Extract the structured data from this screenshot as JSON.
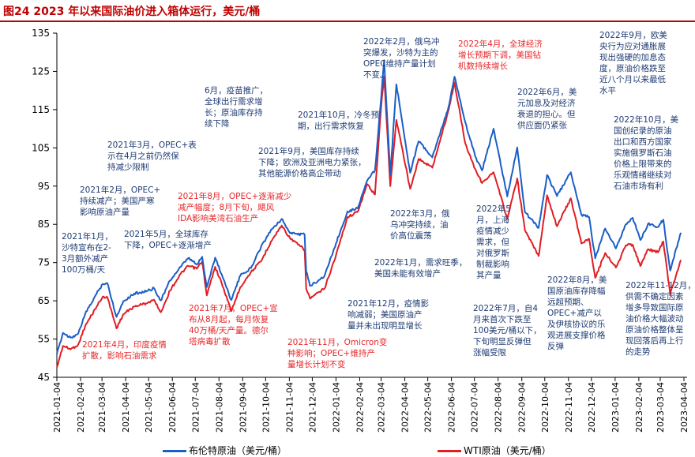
{
  "title": "图24  2023 年以来国际油价进入箱体运行，美元/桶",
  "colors": {
    "brent": "#1a5ec8",
    "wti": "#e01e24",
    "title": "#c00000",
    "blue_text": "#1f3b73",
    "red_text": "#e8272a"
  },
  "chart_data": {
    "type": "line",
    "title": "2023 年以来国际油价进入箱体运行，美元/桶",
    "ylim": [
      45,
      135
    ],
    "yticks": [
      45,
      55,
      65,
      75,
      85,
      95,
      105,
      115,
      125,
      135
    ],
    "xticks": [
      "2021-01-04",
      "2021-02-04",
      "2021-03-04",
      "2021-04-04",
      "2021-05-04",
      "2021-06-04",
      "2021-07-04",
      "2021-08-04",
      "2021-09-04",
      "2021-10-04",
      "2021-11-04",
      "2021-12-04",
      "2022-01-04",
      "2022-02-04",
      "2022-03-04",
      "2022-04-04",
      "2022-05-04",
      "2022-06-04",
      "2022-07-04",
      "2022-08-04",
      "2022-09-04",
      "2022-10-04",
      "2022-11-04",
      "2022-12-04",
      "2023-01-04",
      "2023-02-04",
      "2023-03-04",
      "2023-04-04"
    ],
    "x_end": "2023-03-31",
    "legend_position": "bottom",
    "series": [
      {
        "name": "布伦特原油（美元/桶）",
        "color": "#1a5ec8",
        "points": [
          [
            "2021-01-04",
            51.1
          ],
          [
            "2021-01-12",
            56.6
          ],
          [
            "2021-01-22",
            55.4
          ],
          [
            "2021-02-01",
            56.4
          ],
          [
            "2021-02-10",
            61.5
          ],
          [
            "2021-02-25",
            66.9
          ],
          [
            "2021-03-05",
            69.4
          ],
          [
            "2021-03-11",
            69.6
          ],
          [
            "2021-03-23",
            60.8
          ],
          [
            "2021-04-01",
            64.9
          ],
          [
            "2021-04-15",
            66.9
          ],
          [
            "2021-05-03",
            67.6
          ],
          [
            "2021-05-11",
            68.3
          ],
          [
            "2021-05-20",
            65.1
          ],
          [
            "2021-06-01",
            70.3
          ],
          [
            "2021-06-15",
            73.9
          ],
          [
            "2021-06-25",
            76.2
          ],
          [
            "2021-07-06",
            74.5
          ],
          [
            "2021-07-13",
            76.5
          ],
          [
            "2021-07-19",
            68.6
          ],
          [
            "2021-07-30",
            76.3
          ],
          [
            "2021-08-10",
            70.6
          ],
          [
            "2021-08-20",
            65.2
          ],
          [
            "2021-09-01",
            71.6
          ],
          [
            "2021-09-15",
            73.6
          ],
          [
            "2021-09-28",
            79.1
          ],
          [
            "2021-10-11",
            83.6
          ],
          [
            "2021-10-25",
            86.4
          ],
          [
            "2021-11-05",
            82.7
          ],
          [
            "2021-11-24",
            82.3
          ],
          [
            "2021-11-26",
            72.7
          ],
          [
            "2021-12-01",
            68.9
          ],
          [
            "2021-12-20",
            71.5
          ],
          [
            "2022-01-04",
            80.0
          ],
          [
            "2022-01-19",
            88.4
          ],
          [
            "2022-02-01",
            89.2
          ],
          [
            "2022-02-14",
            96.5
          ],
          [
            "2022-02-24",
            99.1
          ],
          [
            "2022-03-04",
            118.1
          ],
          [
            "2022-03-08",
            127.9
          ],
          [
            "2022-03-16",
            98.0
          ],
          [
            "2022-03-24",
            121.6
          ],
          [
            "2022-04-11",
            98.5
          ],
          [
            "2022-04-22",
            106.7
          ],
          [
            "2022-05-10",
            102.5
          ],
          [
            "2022-05-31",
            115.6
          ],
          [
            "2022-06-08",
            123.6
          ],
          [
            "2022-06-22",
            111.7
          ],
          [
            "2022-07-05",
            102.8
          ],
          [
            "2022-07-14",
            99.1
          ],
          [
            "2022-07-29",
            110.0
          ],
          [
            "2022-08-16",
            92.3
          ],
          [
            "2022-08-29",
            105.1
          ],
          [
            "2022-09-08",
            88.2
          ],
          [
            "2022-09-26",
            84.1
          ],
          [
            "2022-10-07",
            97.9
          ],
          [
            "2022-10-20",
            92.4
          ],
          [
            "2022-11-07",
            98.6
          ],
          [
            "2022-11-21",
            87.5
          ],
          [
            "2022-12-01",
            86.9
          ],
          [
            "2022-12-09",
            76.1
          ],
          [
            "2022-12-22",
            83.9
          ],
          [
            "2023-01-05",
            78.7
          ],
          [
            "2023-01-18",
            85.0
          ],
          [
            "2023-01-27",
            86.7
          ],
          [
            "2023-02-06",
            80.9
          ],
          [
            "2023-02-16",
            85.1
          ],
          [
            "2023-03-01",
            84.3
          ],
          [
            "2023-03-08",
            86.2
          ],
          [
            "2023-03-17",
            72.9
          ],
          [
            "2023-03-31",
            82.8
          ]
        ]
      },
      {
        "name": "WTI原油（美元/桶）",
        "color": "#e01e24",
        "points": [
          [
            "2021-01-04",
            47.6
          ],
          [
            "2021-01-12",
            53.2
          ],
          [
            "2021-01-22",
            52.3
          ],
          [
            "2021-02-01",
            53.6
          ],
          [
            "2021-02-10",
            58.4
          ],
          [
            "2021-02-25",
            63.5
          ],
          [
            "2021-03-05",
            66.1
          ],
          [
            "2021-03-11",
            66.0
          ],
          [
            "2021-03-23",
            57.8
          ],
          [
            "2021-04-01",
            61.5
          ],
          [
            "2021-04-15",
            63.5
          ],
          [
            "2021-05-03",
            64.5
          ],
          [
            "2021-05-11",
            65.3
          ],
          [
            "2021-05-20",
            62.0
          ],
          [
            "2021-06-01",
            67.7
          ],
          [
            "2021-06-15",
            72.1
          ],
          [
            "2021-06-25",
            74.1
          ],
          [
            "2021-07-06",
            73.4
          ],
          [
            "2021-07-13",
            75.3
          ],
          [
            "2021-07-19",
            66.4
          ],
          [
            "2021-07-30",
            73.9
          ],
          [
            "2021-08-10",
            68.3
          ],
          [
            "2021-08-20",
            62.3
          ],
          [
            "2021-09-01",
            68.6
          ],
          [
            "2021-09-15",
            72.6
          ],
          [
            "2021-09-28",
            75.3
          ],
          [
            "2021-10-11",
            80.5
          ],
          [
            "2021-10-25",
            84.7
          ],
          [
            "2021-11-05",
            81.3
          ],
          [
            "2021-11-24",
            78.4
          ],
          [
            "2021-11-26",
            68.2
          ],
          [
            "2021-12-01",
            65.6
          ],
          [
            "2021-12-20",
            68.2
          ],
          [
            "2022-01-04",
            76.9
          ],
          [
            "2022-01-19",
            86.9
          ],
          [
            "2022-02-01",
            88.2
          ],
          [
            "2022-02-14",
            95.5
          ],
          [
            "2022-02-24",
            92.8
          ],
          [
            "2022-03-04",
            115.7
          ],
          [
            "2022-03-08",
            123.7
          ],
          [
            "2022-03-16",
            95.0
          ],
          [
            "2022-03-24",
            112.3
          ],
          [
            "2022-04-11",
            94.3
          ],
          [
            "2022-04-22",
            102.1
          ],
          [
            "2022-05-10",
            99.8
          ],
          [
            "2022-05-31",
            114.7
          ],
          [
            "2022-06-08",
            122.1
          ],
          [
            "2022-06-22",
            106.2
          ],
          [
            "2022-07-05",
            99.5
          ],
          [
            "2022-07-14",
            95.8
          ],
          [
            "2022-07-29",
            98.6
          ],
          [
            "2022-08-16",
            86.5
          ],
          [
            "2022-08-29",
            97.0
          ],
          [
            "2022-09-08",
            83.5
          ],
          [
            "2022-09-26",
            76.7
          ],
          [
            "2022-10-07",
            92.6
          ],
          [
            "2022-10-20",
            84.5
          ],
          [
            "2022-11-07",
            91.8
          ],
          [
            "2022-11-21",
            80.0
          ],
          [
            "2022-12-01",
            81.2
          ],
          [
            "2022-12-09",
            71.0
          ],
          [
            "2022-12-22",
            77.5
          ],
          [
            "2023-01-05",
            73.7
          ],
          [
            "2023-01-18",
            79.5
          ],
          [
            "2023-01-27",
            79.7
          ],
          [
            "2023-02-06",
            74.1
          ],
          [
            "2023-02-16",
            78.5
          ],
          [
            "2023-03-01",
            77.7
          ],
          [
            "2023-03-08",
            80.5
          ],
          [
            "2023-03-17",
            66.7
          ],
          [
            "2023-03-31",
            75.7
          ]
        ]
      }
    ],
    "annotations": [
      {
        "id": "a01",
        "color": "blue",
        "text": "2021年1月，\n沙特宣布在2-\n3月额外减产\n100万桶/天"
      },
      {
        "id": "a02",
        "color": "blue",
        "text": "2021年2月，OPEC+\n持续减产；美国严寒\n影响原油产量"
      },
      {
        "id": "a03",
        "color": "blue",
        "text": "2021年3月，OPEC+表\n示在4月之前仍然保\n持减少限制"
      },
      {
        "id": "a04",
        "color": "red",
        "text": "2021年4月，印度疫情\n扩散，影响石油需求"
      },
      {
        "id": "a05",
        "color": "blue",
        "text": "2021年5月，全球库存\n下降，OPEC+逐渐增产"
      },
      {
        "id": "a06",
        "color": "blue",
        "text": "6月，疫苗推广，\n全球出行需求增\n长；原油库存持\n续下降"
      },
      {
        "id": "a07",
        "color": "red",
        "text": "2021年7月，OPEC+宣\n布从8月起，每月恢复\n40万桶/天产量。德尔\n塔病毒扩散"
      },
      {
        "id": "a08",
        "color": "red",
        "text": "2021年8月，OPEC+逐渐减少\n减产幅度；8月下旬，飓风\nIDA影响美湾石油生产"
      },
      {
        "id": "a09",
        "color": "blue",
        "text": "2021年9月，美国库存持续\n下降；欧洲及亚洲电力紧张，\n其他能源价格高企带动"
      },
      {
        "id": "a10",
        "color": "blue",
        "text": "2021年10月，冷冬预\n期，出行需求恢复"
      },
      {
        "id": "a11",
        "color": "red",
        "text": "2021年11月，Omicron变\n种影响；OPEC+维持产\n量增长计划不变"
      },
      {
        "id": "a12",
        "color": "blue",
        "text": "2021年12月，疫情影\n响减弱；美国原油产\n量并未出现明显增长"
      },
      {
        "id": "a13",
        "color": "blue",
        "text": "2022年1月，需求旺季，\n美国未能有效增产"
      },
      {
        "id": "a14",
        "color": "blue",
        "text": "2022年2月，俄乌冲\n突爆发，沙特为主的\nOPEC维持产量计划\n不变。"
      },
      {
        "id": "a15",
        "color": "blue",
        "text": "2022年3月，俄\n乌冲突持续，油\n价高位震荡"
      },
      {
        "id": "a16",
        "color": "red",
        "text": "2022年4月，全球经济\n增长预期下调，美国钻\n机数持续增长"
      },
      {
        "id": "a17",
        "color": "blue",
        "text": "2022年5\n月，上海\n疫情减少\n需求，但\n对俄罗斯\n制裁影响\n其产量"
      },
      {
        "id": "a18",
        "color": "blue",
        "text": "2022年6月，美\n元加息及对经济\n衰退的担心。但\n供应面仍紧张"
      },
      {
        "id": "a19",
        "color": "blue",
        "text": "2022年7月，自4\n月来首次下跌至\n100美元/桶以下，\n下旬明显反弹但\n涨幅受限"
      },
      {
        "id": "a20",
        "color": "blue",
        "text": "2022年8月，美\n国原油库存降幅\n远超预期、\nOPEC+减产以\n及伊核协议的乐\n观进展支撑价格\n反弹"
      },
      {
        "id": "a21",
        "color": "blue",
        "text": "2022年9月，欧美\n央行为应对通胀展\n现出强硬的加息态\n度，原油价格跌至\n近八个月以来最低\n水平"
      },
      {
        "id": "a22",
        "color": "blue",
        "text": "2022年10月，美\n国创纪录的原油\n出口和西方国家\n实施俄罗斯石油\n价格上限带来的\n乐观情绪继续对\n石油市场有利"
      },
      {
        "id": "a23",
        "color": "blue",
        "text": "2022年11-12月，\n供需不确定因素\n增多导致国际原\n油价格大幅波动\n原油价格整体呈\n现回落后再上行\n的走势"
      }
    ]
  }
}
